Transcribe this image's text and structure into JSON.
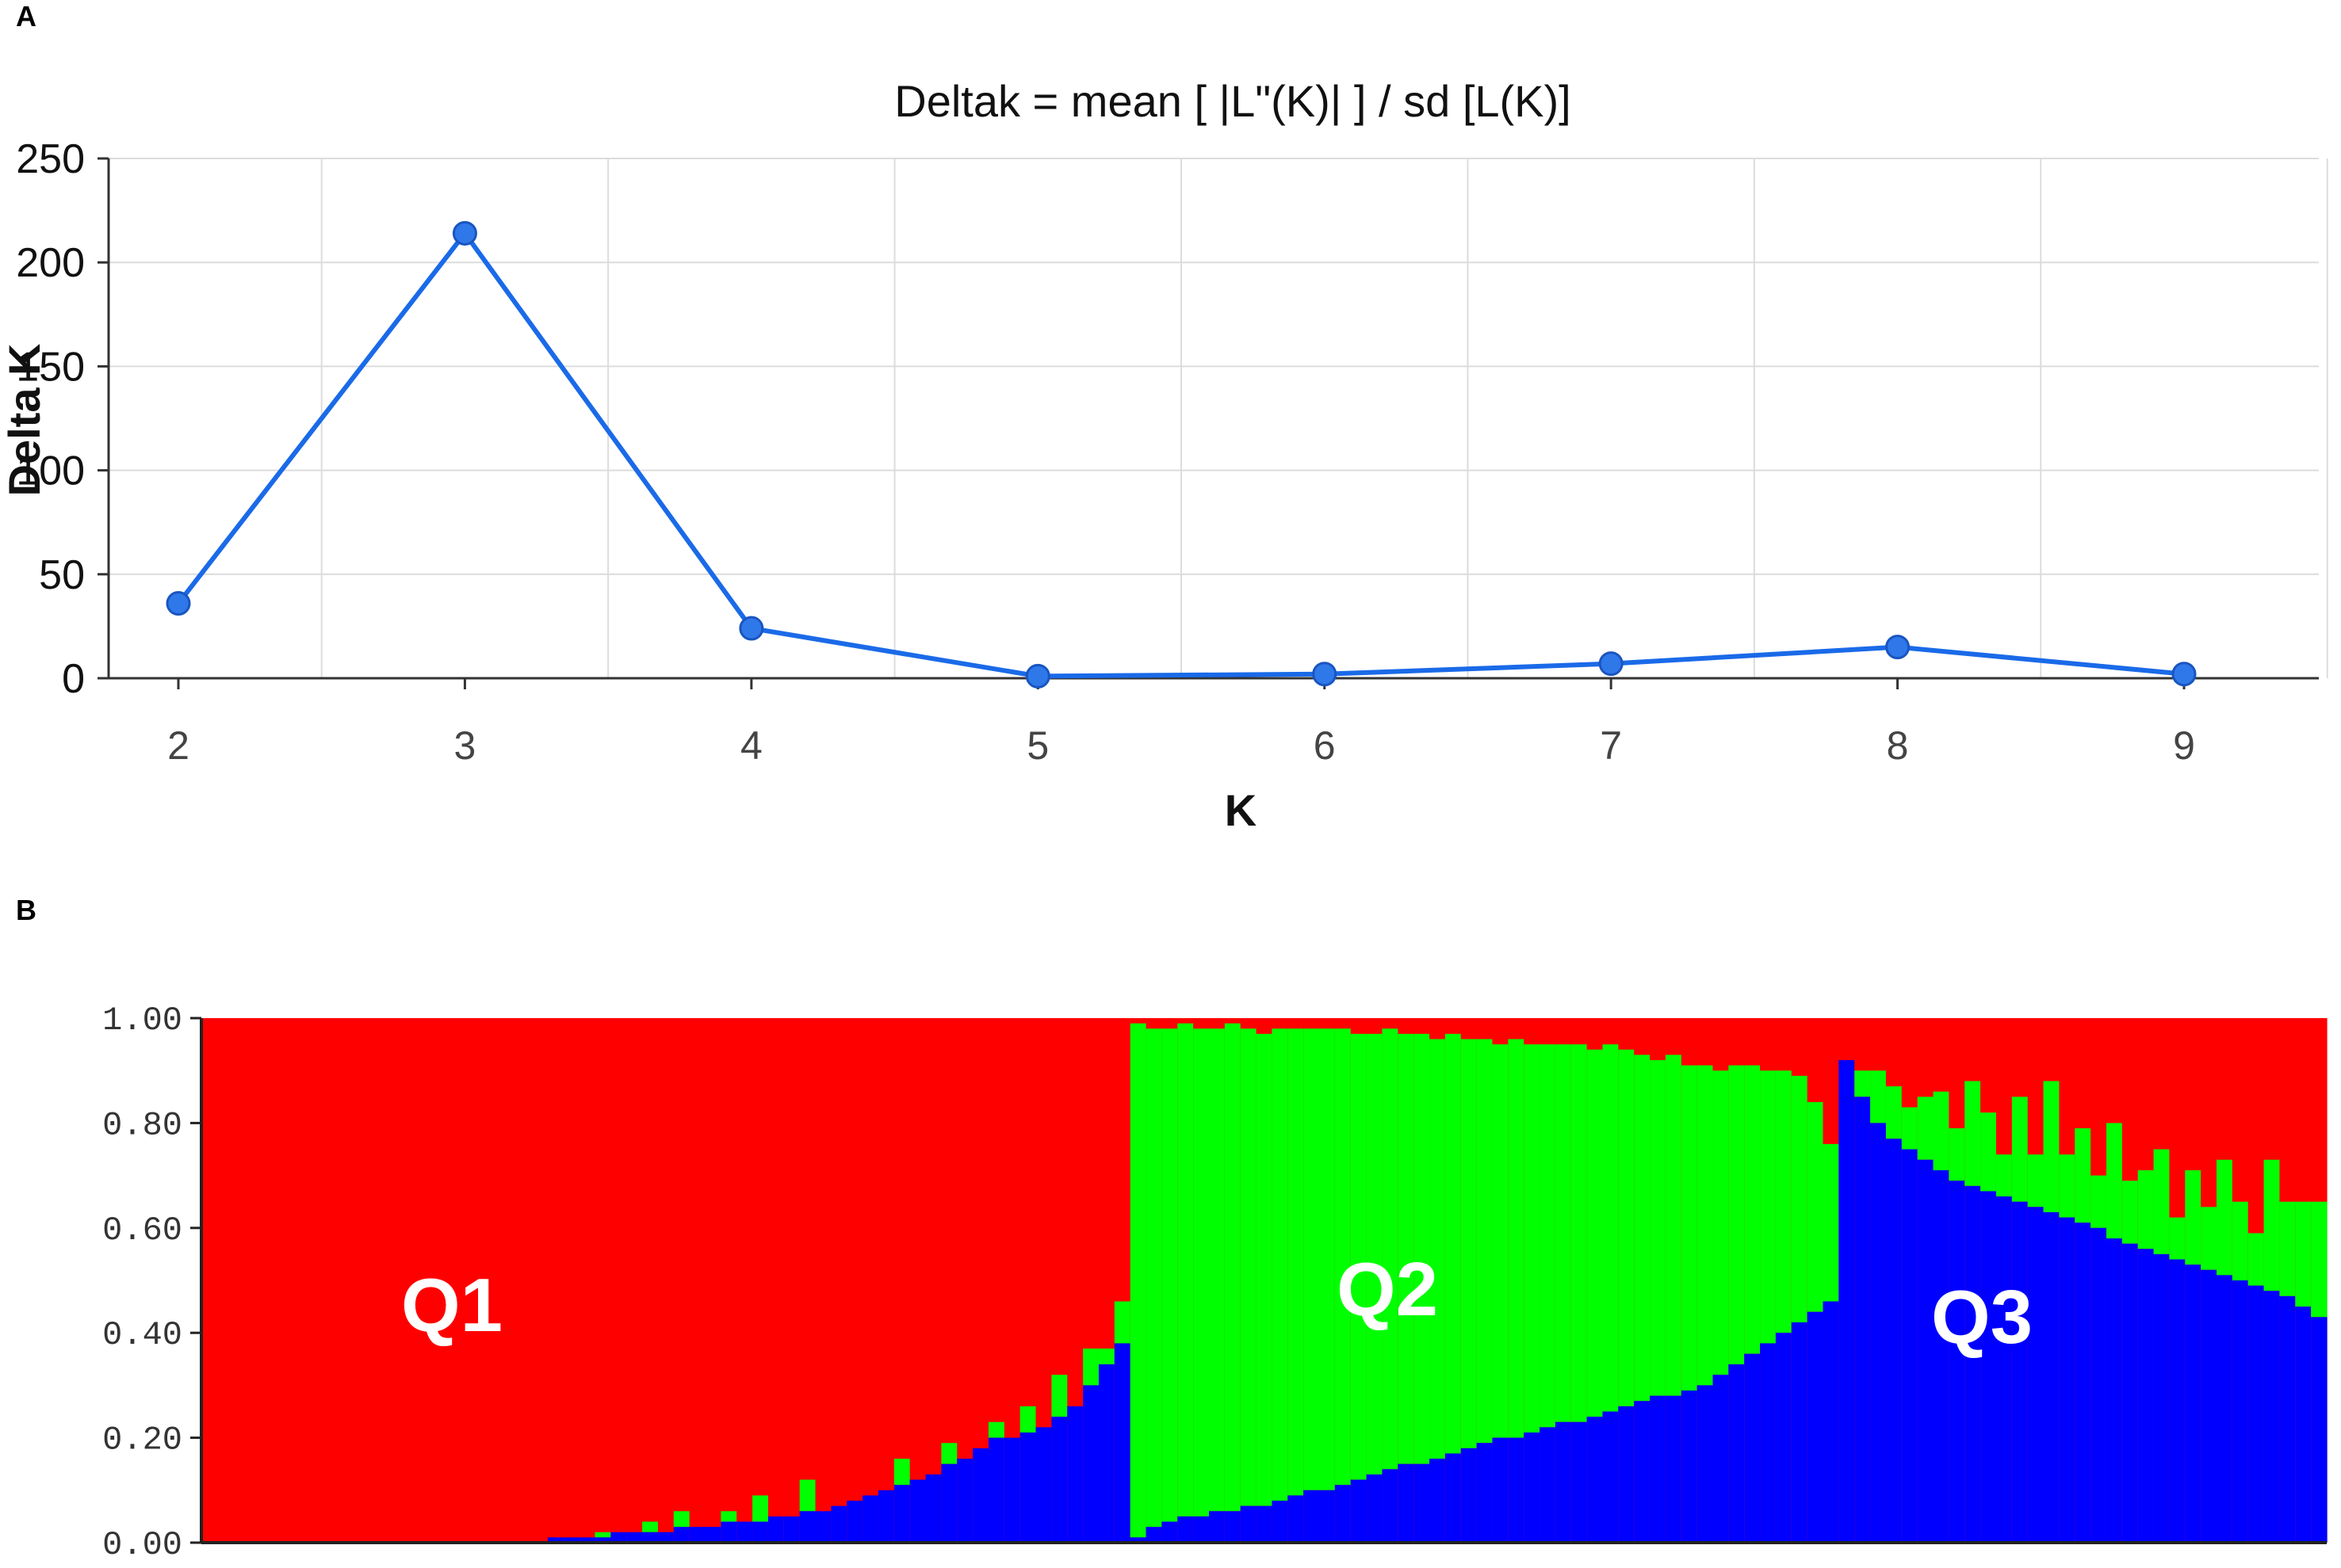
{
  "panels": {
    "a_label": "A",
    "b_label": "B"
  },
  "chart_data": [
    {
      "type": "line",
      "title": "Deltak = mean [ |L\"(K)| ] / sd [L(K)]",
      "xlabel": "K",
      "ylabel": "Delta K",
      "x": [
        2,
        3,
        4,
        5,
        6,
        7,
        8,
        9
      ],
      "y": [
        36,
        214,
        24,
        1,
        2,
        7,
        15,
        2
      ],
      "ylim": [
        0,
        250
      ],
      "yticks": [
        "0",
        "50",
        "100",
        "150",
        "200",
        "250"
      ],
      "xticks": [
        "2",
        "3",
        "4",
        "5",
        "6",
        "7",
        "8",
        "9"
      ],
      "grid": true,
      "line_color": "#1a6ae8"
    },
    {
      "type": "bar",
      "stacked": true,
      "ylim": [
        0,
        1
      ],
      "yticks": [
        "0.00",
        "0.20",
        "0.40",
        "0.60",
        "0.80",
        "1.00"
      ],
      "colors": {
        "Q1": "#ff0000",
        "Q2": "#00ff00",
        "Q3": "#0000ff"
      },
      "cluster_labels": [
        "Q1",
        "Q2",
        "Q3"
      ],
      "group_sizes": [
        59,
        45,
        31
      ],
      "q3_values": [
        0,
        0,
        0,
        0,
        0,
        0,
        0,
        0,
        0,
        0,
        0,
        0,
        0,
        0,
        0,
        0,
        0,
        0,
        0,
        0,
        0,
        0,
        0.01,
        0.01,
        0.01,
        0.01,
        0.02,
        0.02,
        0.02,
        0.02,
        0.03,
        0.03,
        0.03,
        0.04,
        0.04,
        0.04,
        0.05,
        0.05,
        0.06,
        0.06,
        0.07,
        0.08,
        0.09,
        0.1,
        0.11,
        0.12,
        0.13,
        0.15,
        0.16,
        0.18,
        0.2,
        0.2,
        0.21,
        0.22,
        0.24,
        0.26,
        0.3,
        0.34,
        0.38,
        0.01,
        0.03,
        0.04,
        0.05,
        0.05,
        0.06,
        0.06,
        0.07,
        0.07,
        0.08,
        0.09,
        0.1,
        0.1,
        0.11,
        0.12,
        0.13,
        0.14,
        0.15,
        0.15,
        0.16,
        0.17,
        0.18,
        0.19,
        0.2,
        0.2,
        0.21,
        0.22,
        0.23,
        0.23,
        0.24,
        0.25,
        0.26,
        0.27,
        0.28,
        0.28,
        0.29,
        0.3,
        0.32,
        0.34,
        0.36,
        0.38,
        0.4,
        0.42,
        0.44,
        0.46,
        0.92,
        0.85,
        0.8,
        0.77,
        0.75,
        0.73,
        0.71,
        0.69,
        0.68,
        0.67,
        0.66,
        0.65,
        0.64,
        0.63,
        0.62,
        0.61,
        0.6,
        0.58,
        0.57,
        0.56,
        0.55,
        0.54,
        0.53,
        0.52,
        0.51,
        0.5,
        0.49,
        0.48,
        0.47,
        0.45,
        0.43
      ],
      "q2_values": [
        0,
        0,
        0,
        0,
        0,
        0,
        0,
        0,
        0,
        0,
        0,
        0,
        0,
        0,
        0,
        0,
        0,
        0,
        0,
        0,
        0,
        0,
        0,
        0,
        0,
        0.01,
        0,
        0,
        0.02,
        0,
        0.03,
        0,
        0,
        0.02,
        0,
        0.05,
        0,
        0,
        0.06,
        0,
        0,
        0,
        0,
        0,
        0.05,
        0,
        0,
        0.04,
        0,
        0,
        0.03,
        0,
        0.05,
        0,
        0.08,
        0,
        0.07,
        0.03,
        0.08,
        0.98,
        0.95,
        0.94,
        0.94,
        0.93,
        0.92,
        0.93,
        0.91,
        0.9,
        0.9,
        0.89,
        0.88,
        0.88,
        0.87,
        0.85,
        0.84,
        0.84,
        0.82,
        0.82,
        0.8,
        0.8,
        0.78,
        0.77,
        0.75,
        0.76,
        0.74,
        0.73,
        0.72,
        0.72,
        0.7,
        0.7,
        0.68,
        0.66,
        0.64,
        0.65,
        0.62,
        0.61,
        0.58,
        0.57,
        0.55,
        0.52,
        0.5,
        0.47,
        0.4,
        0.3,
        0,
        0.05,
        0.1,
        0.1,
        0.08,
        0.12,
        0.15,
        0.1,
        0.2,
        0.15,
        0.08,
        0.2,
        0.1,
        0.25,
        0.12,
        0.18,
        0.1,
        0.22,
        0.12,
        0.15,
        0.2,
        0.08,
        0.18,
        0.12,
        0.22,
        0.15,
        0.1,
        0.25,
        0.18,
        0.2,
        0.22
      ]
    }
  ]
}
